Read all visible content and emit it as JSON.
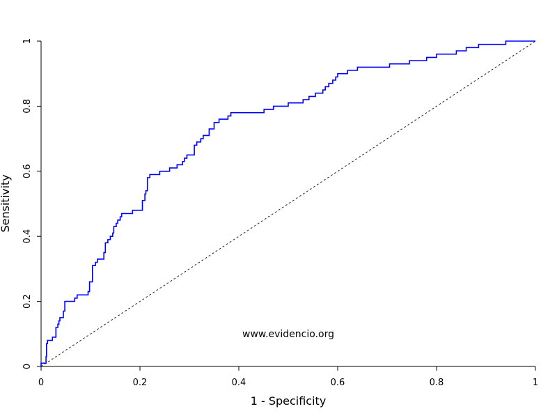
{
  "chart_data": {
    "type": "line",
    "xlabel": "1 - Specificity",
    "ylabel": "Sensitivity",
    "xlim": [
      0,
      1
    ],
    "ylim": [
      0,
      1
    ],
    "x_ticks": [
      {
        "value": 0,
        "label": "0"
      },
      {
        "value": 0.2,
        "label": "0.2"
      },
      {
        "value": 0.4,
        "label": "0.4"
      },
      {
        "value": 0.6,
        "label": "0.6"
      },
      {
        "value": 0.8,
        "label": "0.8"
      },
      {
        "value": 1,
        "label": "1"
      }
    ],
    "y_ticks": [
      {
        "value": 0,
        "label": "0"
      },
      {
        "value": 0.2,
        "label": "0.2"
      },
      {
        "value": 0.4,
        "label": "0.4"
      },
      {
        "value": 0.6,
        "label": "0.6"
      },
      {
        "value": 0.8,
        "label": "0.8"
      },
      {
        "value": 1,
        "label": "1"
      }
    ],
    "grid": false,
    "annotation": "www.evidencio.org",
    "series": [
      {
        "style": "step",
        "color": "#0000ff",
        "points": [
          [
            0,
            0
          ],
          [
            0,
            0.01
          ],
          [
            0.01,
            0.01
          ],
          [
            0.01,
            0.03
          ],
          [
            0.011,
            0.07
          ],
          [
            0.013,
            0.08
          ],
          [
            0.023,
            0.08
          ],
          [
            0.023,
            0.09
          ],
          [
            0.03,
            0.09
          ],
          [
            0.03,
            0.12
          ],
          [
            0.034,
            0.13
          ],
          [
            0.036,
            0.14
          ],
          [
            0.038,
            0.15
          ],
          [
            0.045,
            0.15
          ],
          [
            0.045,
            0.17
          ],
          [
            0.048,
            0.17
          ],
          [
            0.048,
            0.2
          ],
          [
            0.068,
            0.2
          ],
          [
            0.068,
            0.21
          ],
          [
            0.073,
            0.22
          ],
          [
            0.085,
            0.22
          ],
          [
            0.095,
            0.23
          ],
          [
            0.098,
            0.26
          ],
          [
            0.104,
            0.27
          ],
          [
            0.104,
            0.31
          ],
          [
            0.11,
            0.32
          ],
          [
            0.114,
            0.33
          ],
          [
            0.124,
            0.33
          ],
          [
            0.127,
            0.35
          ],
          [
            0.13,
            0.38
          ],
          [
            0.135,
            0.39
          ],
          [
            0.14,
            0.4
          ],
          [
            0.145,
            0.41
          ],
          [
            0.147,
            0.43
          ],
          [
            0.152,
            0.44
          ],
          [
            0.155,
            0.45
          ],
          [
            0.16,
            0.46
          ],
          [
            0.163,
            0.47
          ],
          [
            0.18,
            0.47
          ],
          [
            0.185,
            0.48
          ],
          [
            0.192,
            0.48
          ],
          [
            0.205,
            0.48
          ],
          [
            0.205,
            0.51
          ],
          [
            0.21,
            0.53
          ],
          [
            0.212,
            0.54
          ],
          [
            0.215,
            0.58
          ],
          [
            0.22,
            0.59
          ],
          [
            0.24,
            0.59
          ],
          [
            0.24,
            0.6
          ],
          [
            0.26,
            0.6
          ],
          [
            0.26,
            0.61
          ],
          [
            0.275,
            0.61
          ],
          [
            0.275,
            0.62
          ],
          [
            0.286,
            0.63
          ],
          [
            0.29,
            0.64
          ],
          [
            0.295,
            0.65
          ],
          [
            0.31,
            0.65
          ],
          [
            0.31,
            0.68
          ],
          [
            0.315,
            0.69
          ],
          [
            0.323,
            0.7
          ],
          [
            0.328,
            0.71
          ],
          [
            0.34,
            0.71
          ],
          [
            0.34,
            0.73
          ],
          [
            0.345,
            0.73
          ],
          [
            0.35,
            0.75
          ],
          [
            0.36,
            0.76
          ],
          [
            0.37,
            0.76
          ],
          [
            0.378,
            0.77
          ],
          [
            0.384,
            0.78
          ],
          [
            0.45,
            0.78
          ],
          [
            0.451,
            0.79
          ],
          [
            0.47,
            0.79
          ],
          [
            0.47,
            0.8
          ],
          [
            0.5,
            0.8
          ],
          [
            0.5,
            0.81
          ],
          [
            0.53,
            0.81
          ],
          [
            0.53,
            0.82
          ],
          [
            0.542,
            0.83
          ],
          [
            0.555,
            0.84
          ],
          [
            0.567,
            0.84
          ],
          [
            0.57,
            0.85
          ],
          [
            0.575,
            0.86
          ],
          [
            0.582,
            0.87
          ],
          [
            0.59,
            0.88
          ],
          [
            0.596,
            0.89
          ],
          [
            0.6,
            0.9
          ],
          [
            0.62,
            0.91
          ],
          [
            0.64,
            0.91
          ],
          [
            0.64,
            0.92
          ],
          [
            0.675,
            0.92
          ],
          [
            0.705,
            0.93
          ],
          [
            0.745,
            0.93
          ],
          [
            0.745,
            0.94
          ],
          [
            0.775,
            0.94
          ],
          [
            0.78,
            0.95
          ],
          [
            0.795,
            0.95
          ],
          [
            0.8,
            0.96
          ],
          [
            0.83,
            0.96
          ],
          [
            0.84,
            0.97
          ],
          [
            0.86,
            0.97
          ],
          [
            0.86,
            0.98
          ],
          [
            0.875,
            0.98
          ],
          [
            0.885,
            0.99
          ],
          [
            0.94,
            0.99
          ],
          [
            0.94,
            1
          ],
          [
            1,
            1
          ]
        ]
      },
      {
        "style": "dashed",
        "color": "#000000",
        "points": [
          [
            0,
            0
          ],
          [
            1,
            1
          ]
        ]
      }
    ]
  }
}
